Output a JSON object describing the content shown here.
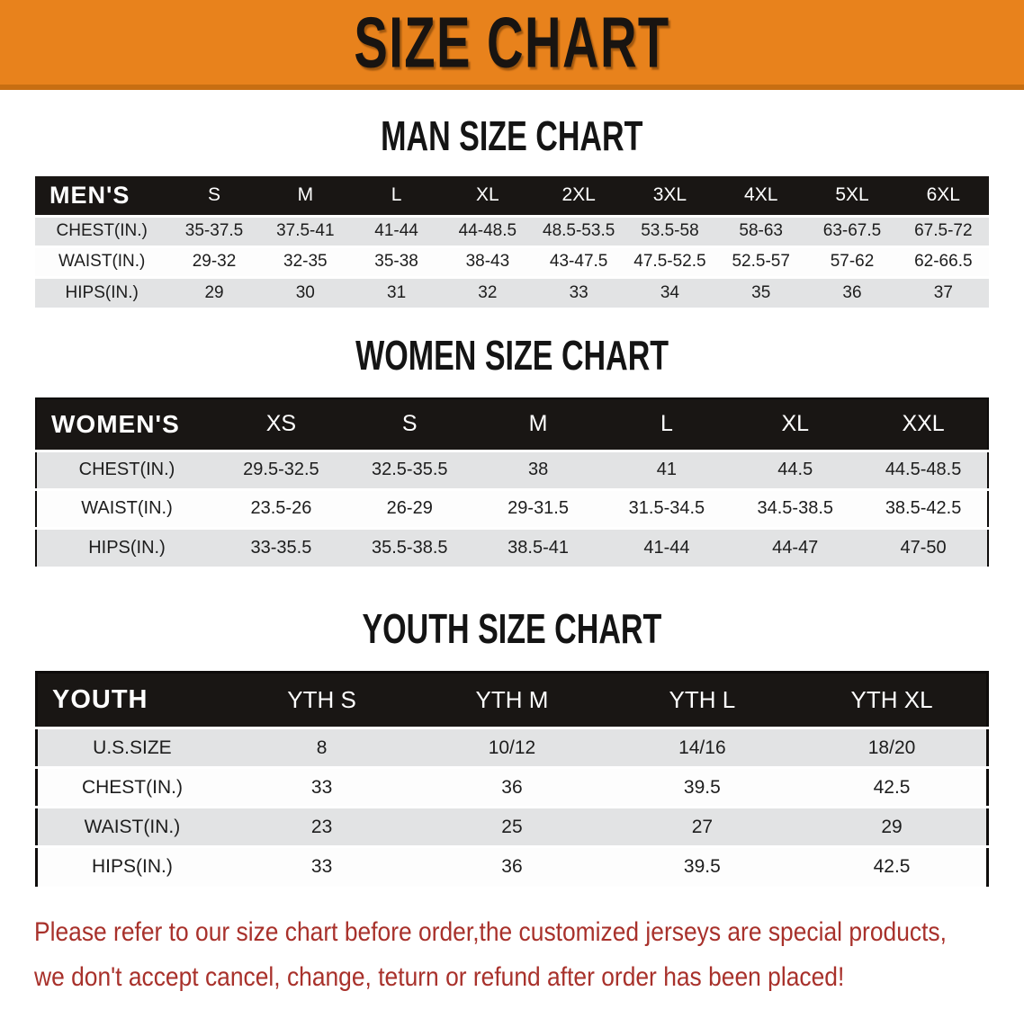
{
  "banner": {
    "title": "SIZE CHART",
    "bg_color": "#E8821C",
    "edge_color": "#C76E12"
  },
  "colors": {
    "table_header_bg": "#191614",
    "shaded_row_bg": "#E2E3E4",
    "disclaimer_red": "#A8312B"
  },
  "sections": [
    {
      "heading": "MAN SIZE CHART",
      "table": {
        "label": "MEN'S",
        "columns": [
          "S",
          "M",
          "L",
          "XL",
          "2XL",
          "3XL",
          "4XL",
          "5XL",
          "6XL"
        ],
        "rows": [
          {
            "label": "CHEST(IN.)",
            "values": [
              "35-37.5",
              "37.5-41",
              "41-44",
              "44-48.5",
              "48.5-53.5",
              "53.5-58",
              "58-63",
              "63-67.5",
              "67.5-72"
            ]
          },
          {
            "label": "WAIST(IN.)",
            "values": [
              "29-32",
              "32-35",
              "35-38",
              "38-43",
              "43-47.5",
              "47.5-52.5",
              "52.5-57",
              "57-62",
              "62-66.5"
            ]
          },
          {
            "label": "HIPS(IN.)",
            "values": [
              "29",
              "30",
              "31",
              "32",
              "33",
              "34",
              "35",
              "36",
              "37"
            ]
          }
        ]
      }
    },
    {
      "heading": "WOMEN SIZE CHART",
      "table": {
        "label": "WOMEN'S",
        "columns": [
          "XS",
          "S",
          "M",
          "L",
          "XL",
          "XXL"
        ],
        "rows": [
          {
            "label": "CHEST(IN.)",
            "values": [
              "29.5-32.5",
              "32.5-35.5",
              "38",
              "41",
              "44.5",
              "44.5-48.5"
            ]
          },
          {
            "label": "WAIST(IN.)",
            "values": [
              "23.5-26",
              "26-29",
              "29-31.5",
              "31.5-34.5",
              "34.5-38.5",
              "38.5-42.5"
            ]
          },
          {
            "label": "HIPS(IN.)",
            "values": [
              "33-35.5",
              "35.5-38.5",
              "38.5-41",
              "41-44",
              "44-47",
              "47-50"
            ]
          }
        ]
      }
    },
    {
      "heading": "YOUTH SIZE CHART",
      "table": {
        "label": "YOUTH",
        "columns": [
          "YTH S",
          "YTH M",
          "YTH L",
          "YTH XL"
        ],
        "rows": [
          {
            "label": "U.S.SIZE",
            "values": [
              "8",
              "10/12",
              "14/16",
              "18/20"
            ]
          },
          {
            "label": "CHEST(IN.)",
            "values": [
              "33",
              "36",
              "39.5",
              "42.5"
            ]
          },
          {
            "label": "WAIST(IN.)",
            "values": [
              "23",
              "25",
              "27",
              "29"
            ]
          },
          {
            "label": "HIPS(IN.)",
            "values": [
              "33",
              "36",
              "39.5",
              "42.5"
            ]
          }
        ]
      }
    }
  ],
  "disclaimer": {
    "line1": "Please refer to our size chart before order,the customized jerseys are special products,",
    "line2": "we don't accept cancel, change, teturn or refund after order has been placed!"
  }
}
